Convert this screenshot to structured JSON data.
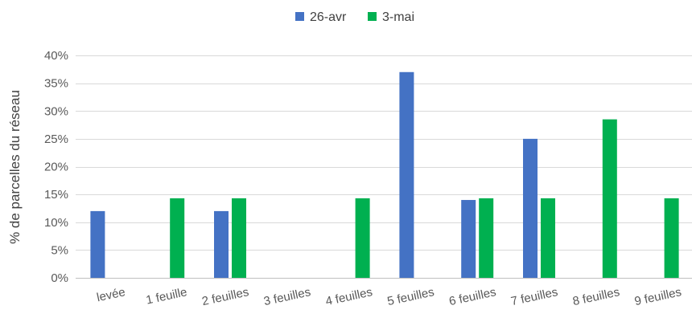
{
  "chart_data": {
    "type": "bar",
    "title": "",
    "xlabel": "",
    "ylabel": "% de parcelles du réseau",
    "categories": [
      "levée",
      "1 feuille",
      "2 feuilles",
      "3 feuilles",
      "4 feuilles",
      "5 feuilles",
      "6 feuilles",
      "7 feuilles",
      "8 feuilles",
      "9 feuilles"
    ],
    "series": [
      {
        "name": "26-avr",
        "color": "#4472C4",
        "values": [
          12,
          0,
          12,
          0,
          0,
          37,
          14,
          25,
          0,
          0
        ]
      },
      {
        "name": "3-mai",
        "color": "#00B050",
        "values": [
          0,
          14.3,
          14.3,
          0,
          14.3,
          0,
          14.3,
          14.3,
          28.5,
          14.3
        ]
      }
    ],
    "ylim": [
      0,
      40
    ],
    "yticks": [
      "0%",
      "5%",
      "10%",
      "15%",
      "20%",
      "25%",
      "30%",
      "35%",
      "40%"
    ],
    "ytick_values": [
      0,
      5,
      10,
      15,
      20,
      25,
      30,
      35,
      40
    ],
    "grid": true,
    "legend_position": "top-center"
  }
}
